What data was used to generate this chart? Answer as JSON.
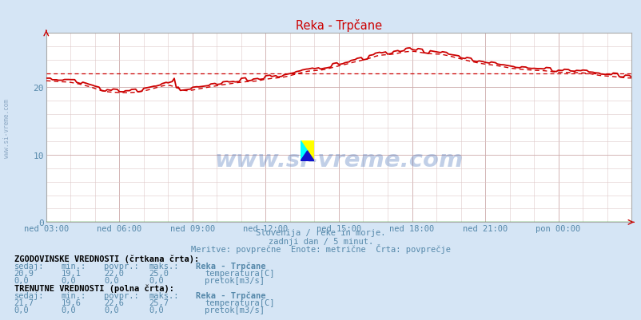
{
  "title": "Reka - Trpčane",
  "bg_color": "#d5e5f5",
  "plot_bg_color": "#ffffff",
  "text_color": "#5588aa",
  "line_color": "#cc0000",
  "green_color": "#008800",
  "ylim": [
    0,
    28
  ],
  "yticks": [
    0,
    10,
    20
  ],
  "watermark_text": "www.si-vreme.com",
  "watermark_color": "#2255aa",
  "watermark_alpha": 0.28,
  "subtitle1": "Slovenija / reke in morje.",
  "subtitle2": "zadnji dan / 5 minut.",
  "subtitle3": "Meritve: povprečne  Enote: metrične  Črta: povprečje",
  "xtick_labels": [
    "ned 03:00",
    "ned 06:00",
    "ned 09:00",
    "ned 12:00",
    "ned 15:00",
    "ned 18:00",
    "ned 21:00",
    "pon 00:00"
  ],
  "hist_section_title": "ZGODOVINSKE VREDNOSTI (črtkana črta):",
  "hist_temp_values": [
    "20,9",
    "19,1",
    "22,0",
    "25,0"
  ],
  "hist_temp_label": "temperatura[C]",
  "hist_temp_color": "#cc0000",
  "hist_flow_values": [
    "0,0",
    "0,0",
    "0,0",
    "0,0"
  ],
  "hist_flow_label": "pretok[m3/s]",
  "hist_flow_color": "#008800",
  "curr_section_title": "TRENUTNE VREDNOSTI (polna črta):",
  "curr_temp_values": [
    "21,7",
    "19,6",
    "22,6",
    "25,7"
  ],
  "curr_temp_label": "temperatura[C]",
  "curr_temp_color": "#cc0000",
  "curr_flow_values": [
    "0,0",
    "0,0",
    "0,0",
    "0,0"
  ],
  "curr_flow_label": "pretok[m3/s]",
  "curr_flow_color": "#008800",
  "avg_dashed_value": 22.0
}
